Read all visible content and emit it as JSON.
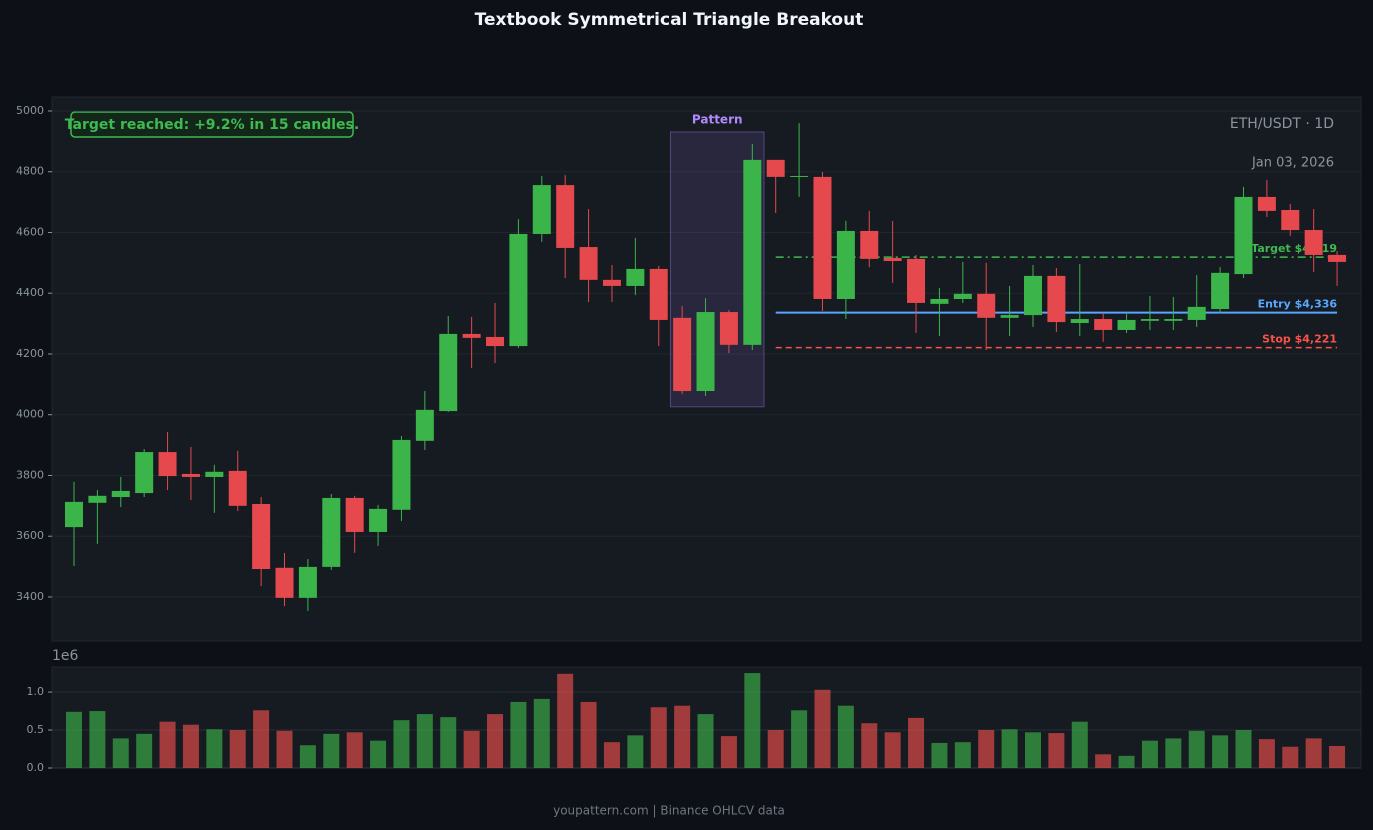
{
  "footer": "youpattern.com | Binance OHLCV data",
  "chart_data": [
    {
      "type": "candlestick",
      "title": "Textbook Symmetrical Triangle Breakout",
      "symbol": "ETH/USDT · 1D",
      "date": "Jan 03, 2026",
      "annotation": "Target reached: +9.2% in 15 candles.",
      "open": [
        3630,
        3710,
        3729,
        3742,
        3877,
        3805,
        3795,
        3815,
        3706,
        3496,
        3397,
        3499,
        3726,
        3614,
        3687,
        3914,
        4012,
        4266,
        4256,
        4226,
        4595,
        4756,
        4552,
        4444,
        4424,
        4480,
        4319,
        4078,
        4338,
        4230,
        4839,
        4783,
        4783,
        4381,
        4605,
        4516,
        4513,
        4365,
        4381,
        4398,
        4319,
        4328,
        4457,
        4302,
        4315,
        4279,
        4309,
        4309,
        4312,
        4348,
        4463,
        4717,
        4674,
        4608,
        4526
      ],
      "high": [
        3779,
        3752,
        3795,
        3887,
        3943,
        3894,
        3835,
        3881,
        3729,
        3545,
        3525,
        3739,
        3733,
        3703,
        3930,
        4078,
        4325,
        4322,
        4368,
        4644,
        4786,
        4789,
        4677,
        4493,
        4582,
        4490,
        4358,
        4384,
        4345,
        4891,
        4839,
        4960,
        4799,
        4638,
        4671,
        4638,
        4526,
        4417,
        4503,
        4500,
        4424,
        4493,
        4483,
        4496,
        4335,
        4332,
        4391,
        4388,
        4460,
        4486,
        4750,
        4773,
        4694,
        4677,
        4539
      ],
      "low": [
        3502,
        3575,
        3696,
        3729,
        3752,
        3719,
        3677,
        3683,
        3436,
        3370,
        3354,
        3489,
        3545,
        3568,
        3650,
        3884,
        4009,
        4154,
        4170,
        4220,
        4569,
        4450,
        4371,
        4371,
        4394,
        4226,
        4068,
        4062,
        4203,
        4213,
        4664,
        4717,
        4342,
        4315,
        4486,
        4434,
        4269,
        4259,
        4368,
        4213,
        4259,
        4289,
        4272,
        4259,
        4240,
        4269,
        4279,
        4279,
        4289,
        4335,
        4450,
        4651,
        4589,
        4470,
        4424
      ],
      "close": [
        3713,
        3733,
        3749,
        3877,
        3798,
        3795,
        3812,
        3700,
        3492,
        3397,
        3499,
        3726,
        3614,
        3690,
        3917,
        4016,
        4266,
        4253,
        4226,
        4595,
        4756,
        4549,
        4444,
        4424,
        4480,
        4312,
        4078,
        4338,
        4230,
        4839,
        4783,
        4786,
        4381,
        4605,
        4513,
        4506,
        4368,
        4381,
        4398,
        4319,
        4328,
        4457,
        4305,
        4315,
        4279,
        4312,
        4315,
        4315,
        4355,
        4467,
        4717,
        4671,
        4608,
        4526,
        4503
      ],
      "up_color": "#3bb54a",
      "down_color": "#e5484d",
      "ylim": [
        3255,
        5046
      ],
      "yticks": [
        3400,
        3600,
        3800,
        4000,
        4200,
        4400,
        4600,
        4800,
        5000
      ],
      "grid": true,
      "pattern": {
        "label": "Pattern",
        "start": 26,
        "end": 29,
        "low": 4026,
        "high": 4931,
        "color": "#b388ff"
      },
      "levels": [
        {
          "value": 4519,
          "label": "Target $4,519",
          "color": "#3fb950",
          "style": "dashdot",
          "from": 30
        },
        {
          "value": 4336,
          "label": "Entry $4,336",
          "color": "#58a6ff",
          "style": "solid",
          "from": 30
        },
        {
          "value": 4221,
          "label": "Stop $4,221",
          "color": "#f85149",
          "style": "dashed",
          "from": 30
        }
      ]
    },
    {
      "type": "volume",
      "offset_label": "1e6",
      "values": [
        0.74,
        0.75,
        0.39,
        0.45,
        0.61,
        0.57,
        0.51,
        0.5,
        0.76,
        0.49,
        0.3,
        0.45,
        0.47,
        0.36,
        0.63,
        0.71,
        0.67,
        0.49,
        0.71,
        0.87,
        0.91,
        1.24,
        0.87,
        0.34,
        0.43,
        0.8,
        0.82,
        0.71,
        0.42,
        1.25,
        0.5,
        0.76,
        1.03,
        0.82,
        0.59,
        0.47,
        0.66,
        0.33,
        0.34,
        0.5,
        0.51,
        0.47,
        0.46,
        0.61,
        0.18,
        0.16,
        0.36,
        0.39,
        0.49,
        0.43,
        0.5,
        0.38,
        0.28,
        0.39,
        0.29
      ],
      "up_color": "#2e7d3a",
      "down_color": "#a23c3c",
      "ylim": [
        0,
        1.33
      ],
      "yticks": [
        {
          "value": 0,
          "label": "0.0"
        },
        {
          "value": 0.5,
          "label": "0.5"
        },
        {
          "value": 1,
          "label": "1.0"
        }
      ],
      "grid": true
    }
  ]
}
